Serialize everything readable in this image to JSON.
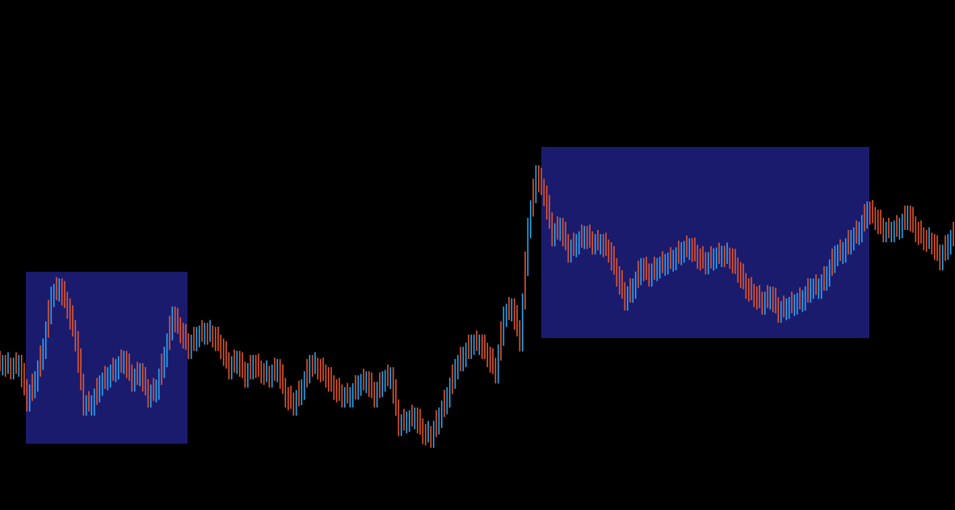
{
  "chart_data": {
    "type": "ohlc",
    "background": "#000000",
    "up_color": "#2aa6ee",
    "down_color": "#e2562c",
    "highlight_color": "#1b1b6e",
    "ylim": [
      0,
      100
    ],
    "grid": false,
    "closes": [
      28.8,
      28.0,
      28.8,
      21.7,
      25.6,
      32.0,
      42.2,
      43.8,
      39.9,
      33.5,
      20.9,
      20.9,
      24.8,
      26.4,
      28.0,
      29.6,
      25.6,
      27.2,
      22.5,
      24.0,
      30.4,
      38.3,
      35.1,
      32.0,
      34.3,
      35.1,
      34.3,
      32.0,
      28.0,
      29.6,
      26.4,
      28.8,
      27.2,
      26.4,
      28.0,
      22.5,
      20.9,
      24.0,
      28.8,
      28.0,
      26.4,
      24.0,
      22.5,
      22.5,
      24.8,
      25.6,
      22.5,
      25.6,
      26.4,
      16.9,
      17.7,
      18.5,
      15.3,
      14.6,
      18.5,
      22.5,
      28.0,
      30.4,
      32.8,
      32.8,
      30.4,
      27.2,
      38.3,
      39.9,
      33.5,
      55.7,
      66.0,
      62.0,
      54.1,
      55.7,
      50.9,
      52.5,
      54.1,
      52.5,
      52.5,
      50.9,
      46.2,
      41.5,
      43.8,
      47.8,
      46.2,
      47.8,
      48.6,
      49.4,
      50.9,
      51.7,
      49.7,
      48.6,
      49.7,
      50.2,
      49.7,
      47.0,
      43.8,
      42.2,
      40.7,
      42.2,
      39.1,
      39.9,
      40.7,
      41.5,
      43.8,
      43.8,
      46.2,
      50.2,
      50.9,
      53.3,
      54.9,
      58.9,
      57.3,
      54.9,
      54.9,
      55.7,
      58.1,
      54.9,
      53.3,
      52.5,
      49.4,
      52.5,
      54.9
    ],
    "highlights": [
      {
        "bar_range": [
          3.2,
          23.2
        ],
        "price_range": [
          13.0,
          46.7
        ]
      },
      {
        "bar_range": [
          67.0,
          107.6
        ],
        "price_range": [
          33.7,
          71.2
        ]
      }
    ]
  }
}
